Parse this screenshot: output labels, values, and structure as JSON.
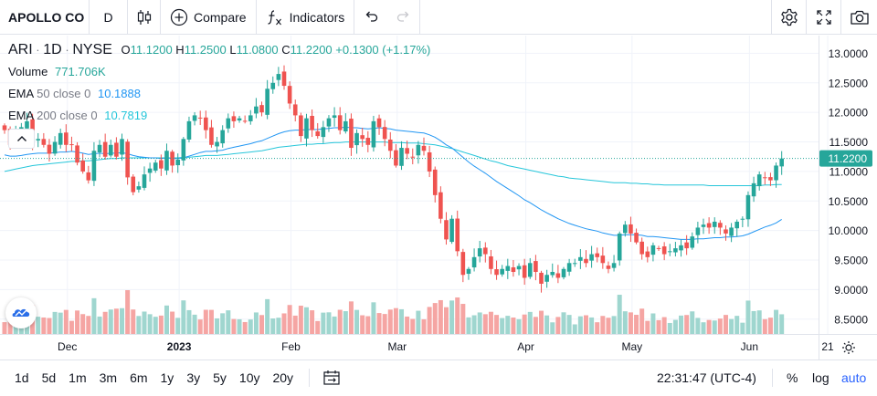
{
  "toolbar": {
    "symbol": "APOLLO CO",
    "interval": "D",
    "compare_label": "Compare",
    "indicators_label": "Indicators"
  },
  "legend": {
    "symbol": "ARI",
    "interval": "1D",
    "exchange": "NYSE",
    "o_label": "O",
    "open": "11.1200",
    "h_label": "H",
    "high": "11.2500",
    "l_label": "L",
    "low": "11.0800",
    "c_label": "C",
    "close": "11.2200",
    "change": "+0.1300 (+1.17%)",
    "volume_label": "Volume",
    "volume_value": "771.706K",
    "ema50_label": "EMA",
    "ema50_params": "50 close 0",
    "ema50_value": "10.1888",
    "ema200_label": "EMA",
    "ema200_params": "200 close 0",
    "ema200_value": "10.7819"
  },
  "bottom": {
    "ranges": [
      "1d",
      "5d",
      "1m",
      "3m",
      "6m",
      "1y",
      "3y",
      "5y",
      "10y",
      "20y"
    ],
    "time": "22:31:47 (UTC-4)",
    "percent_label": "%",
    "log_label": "log",
    "auto_label": "auto"
  },
  "colors": {
    "up": "#26a69a",
    "down": "#ef5350",
    "up_volume": "#9fd6cf",
    "down_volume": "#f5a5a3",
    "ema50": "#2196f3",
    "ema200": "#26c6da",
    "accent": "#2962ff"
  },
  "icons": [
    "candle-style-icon",
    "plus-circle-icon",
    "fx-icon",
    "undo-icon",
    "redo-icon",
    "gear-icon",
    "fullscreen-icon",
    "camera-icon",
    "calendar-range-icon",
    "axis-settings-icon",
    "collapse-up-icon",
    "logo-icon"
  ],
  "chart_data": {
    "type": "candlestick",
    "symbol": "ARI",
    "price_axis": {
      "ticks": [
        "13.0000",
        "12.5000",
        "12.0000",
        "11.5000",
        "11.0000",
        "10.5000",
        "10.0000",
        "9.5000",
        "9.0000",
        "8.5000"
      ],
      "range": [
        8.25,
        13.3
      ]
    },
    "last_price_label": "11.2200",
    "time_axis": {
      "ticks": [
        "Dec",
        "2023",
        "Feb",
        "Mar",
        "Apr",
        "May",
        "Jun",
        "21"
      ]
    },
    "close": [
      11.7,
      11.45,
      11.7,
      11.75,
      11.85,
      11.5,
      11.55,
      11.45,
      11.3,
      11.5,
      11.65,
      11.45,
      11.45,
      11.15,
      11.0,
      10.85,
      11.35,
      11.45,
      11.25,
      11.45,
      11.25,
      11.55,
      10.9,
      10.65,
      10.75,
      10.95,
      11.05,
      11.15,
      11.05,
      11.35,
      11.1,
      11.2,
      11.55,
      11.85,
      11.95,
      11.9,
      11.7,
      11.45,
      11.5,
      11.7,
      11.9,
      11.85,
      11.9,
      11.85,
      11.95,
      12.1,
      12.0,
      12.4,
      12.5,
      12.65,
      12.45,
      12.15,
      11.95,
      11.6,
      11.9,
      11.7,
      11.6,
      11.75,
      11.9,
      11.95,
      11.7,
      11.85,
      11.4,
      11.65,
      11.55,
      11.45,
      11.85,
      11.75,
      11.55,
      11.35,
      11.1,
      11.4,
      11.3,
      11.25,
      11.45,
      11.35,
      11.0,
      10.6,
      10.2,
      9.85,
      10.2,
      9.65,
      9.25,
      9.35,
      9.55,
      9.7,
      9.6,
      9.35,
      9.25,
      9.35,
      9.4,
      9.3,
      9.4,
      9.2,
      9.45,
      9.3,
      9.1,
      9.25,
      9.3,
      9.2,
      9.35,
      9.45,
      9.45,
      9.55,
      9.45,
      9.6,
      9.55,
      9.45,
      9.35,
      9.45,
      9.95,
      10.1,
      9.95,
      9.8,
      9.6,
      9.55,
      9.75,
      9.7,
      9.6,
      9.65,
      9.7,
      9.75,
      9.7,
      9.9,
      10.05,
      10.1,
      10.05,
      10.15,
      10.05,
      9.95,
      10.05,
      10.15,
      10.2,
      10.6,
      10.8,
      10.95,
      10.9,
      10.85,
      11.1,
      11.22
    ],
    "ema50": [
      11.28,
      11.26,
      11.26,
      11.27,
      11.29,
      11.3,
      11.31,
      11.31,
      11.31,
      11.32,
      11.33,
      11.33,
      11.34,
      11.33,
      11.31,
      11.29,
      11.3,
      11.31,
      11.3,
      11.31,
      11.31,
      11.32,
      11.3,
      11.27,
      11.25,
      11.24,
      11.23,
      11.23,
      11.22,
      11.23,
      11.22,
      11.22,
      11.23,
      11.26,
      11.29,
      11.32,
      11.34,
      11.34,
      11.35,
      11.36,
      11.39,
      11.41,
      11.43,
      11.45,
      11.47,
      11.5,
      11.52,
      11.56,
      11.6,
      11.64,
      11.67,
      11.69,
      11.7,
      11.7,
      11.71,
      11.71,
      11.71,
      11.72,
      11.73,
      11.74,
      11.74,
      11.75,
      11.74,
      11.74,
      11.73,
      11.72,
      11.73,
      11.74,
      11.73,
      11.72,
      11.7,
      11.69,
      11.68,
      11.67,
      11.66,
      11.65,
      11.62,
      11.58,
      11.52,
      11.45,
      11.4,
      11.32,
      11.24,
      11.16,
      11.09,
      11.03,
      10.97,
      10.9,
      10.83,
      10.77,
      10.71,
      10.65,
      10.59,
      10.52,
      10.47,
      10.41,
      10.35,
      10.3,
      10.25,
      10.2,
      10.16,
      10.12,
      10.09,
      10.06,
      10.03,
      10.01,
      9.99,
      9.96,
      9.94,
      9.92,
      9.92,
      9.93,
      9.93,
      9.93,
      9.92,
      9.9,
      9.9,
      9.89,
      9.88,
      9.87,
      9.86,
      9.85,
      9.85,
      9.85,
      9.86,
      9.86,
      9.87,
      9.88,
      9.88,
      9.89,
      9.89,
      9.9,
      9.91,
      9.94,
      9.98,
      10.02,
      10.06,
      10.09,
      10.13,
      10.19
    ],
    "ema200": [
      11.0,
      11.02,
      11.04,
      11.06,
      11.08,
      11.1,
      11.11,
      11.12,
      11.13,
      11.14,
      11.15,
      11.16,
      11.17,
      11.17,
      11.18,
      11.18,
      11.19,
      11.2,
      11.21,
      11.22,
      11.22,
      11.23,
      11.23,
      11.23,
      11.23,
      11.23,
      11.23,
      11.23,
      11.23,
      11.23,
      11.23,
      11.23,
      11.24,
      11.24,
      11.25,
      11.26,
      11.27,
      11.27,
      11.27,
      11.28,
      11.29,
      11.3,
      11.31,
      11.32,
      11.33,
      11.34,
      11.35,
      11.37,
      11.39,
      11.41,
      11.42,
      11.43,
      11.44,
      11.45,
      11.46,
      11.46,
      11.47,
      11.47,
      11.48,
      11.49,
      11.49,
      11.5,
      11.5,
      11.5,
      11.5,
      11.5,
      11.5,
      11.5,
      11.5,
      11.49,
      11.49,
      11.49,
      11.48,
      11.48,
      11.48,
      11.47,
      11.46,
      11.45,
      11.43,
      11.41,
      11.39,
      11.36,
      11.33,
      11.3,
      11.27,
      11.24,
      11.21,
      11.18,
      11.16,
      11.13,
      11.1,
      11.08,
      11.06,
      11.04,
      11.02,
      11.0,
      10.98,
      10.96,
      10.94,
      10.92,
      10.91,
      10.89,
      10.88,
      10.87,
      10.86,
      10.85,
      10.84,
      10.83,
      10.82,
      10.81,
      10.81,
      10.81,
      10.8,
      10.8,
      10.79,
      10.79,
      10.78,
      10.78,
      10.77,
      10.77,
      10.77,
      10.77,
      10.77,
      10.77,
      10.77,
      10.77,
      10.76,
      10.76,
      10.76,
      10.76,
      10.76,
      10.76,
      10.76,
      10.76,
      10.76,
      10.76,
      10.77,
      10.77,
      10.78,
      10.78
    ]
  }
}
